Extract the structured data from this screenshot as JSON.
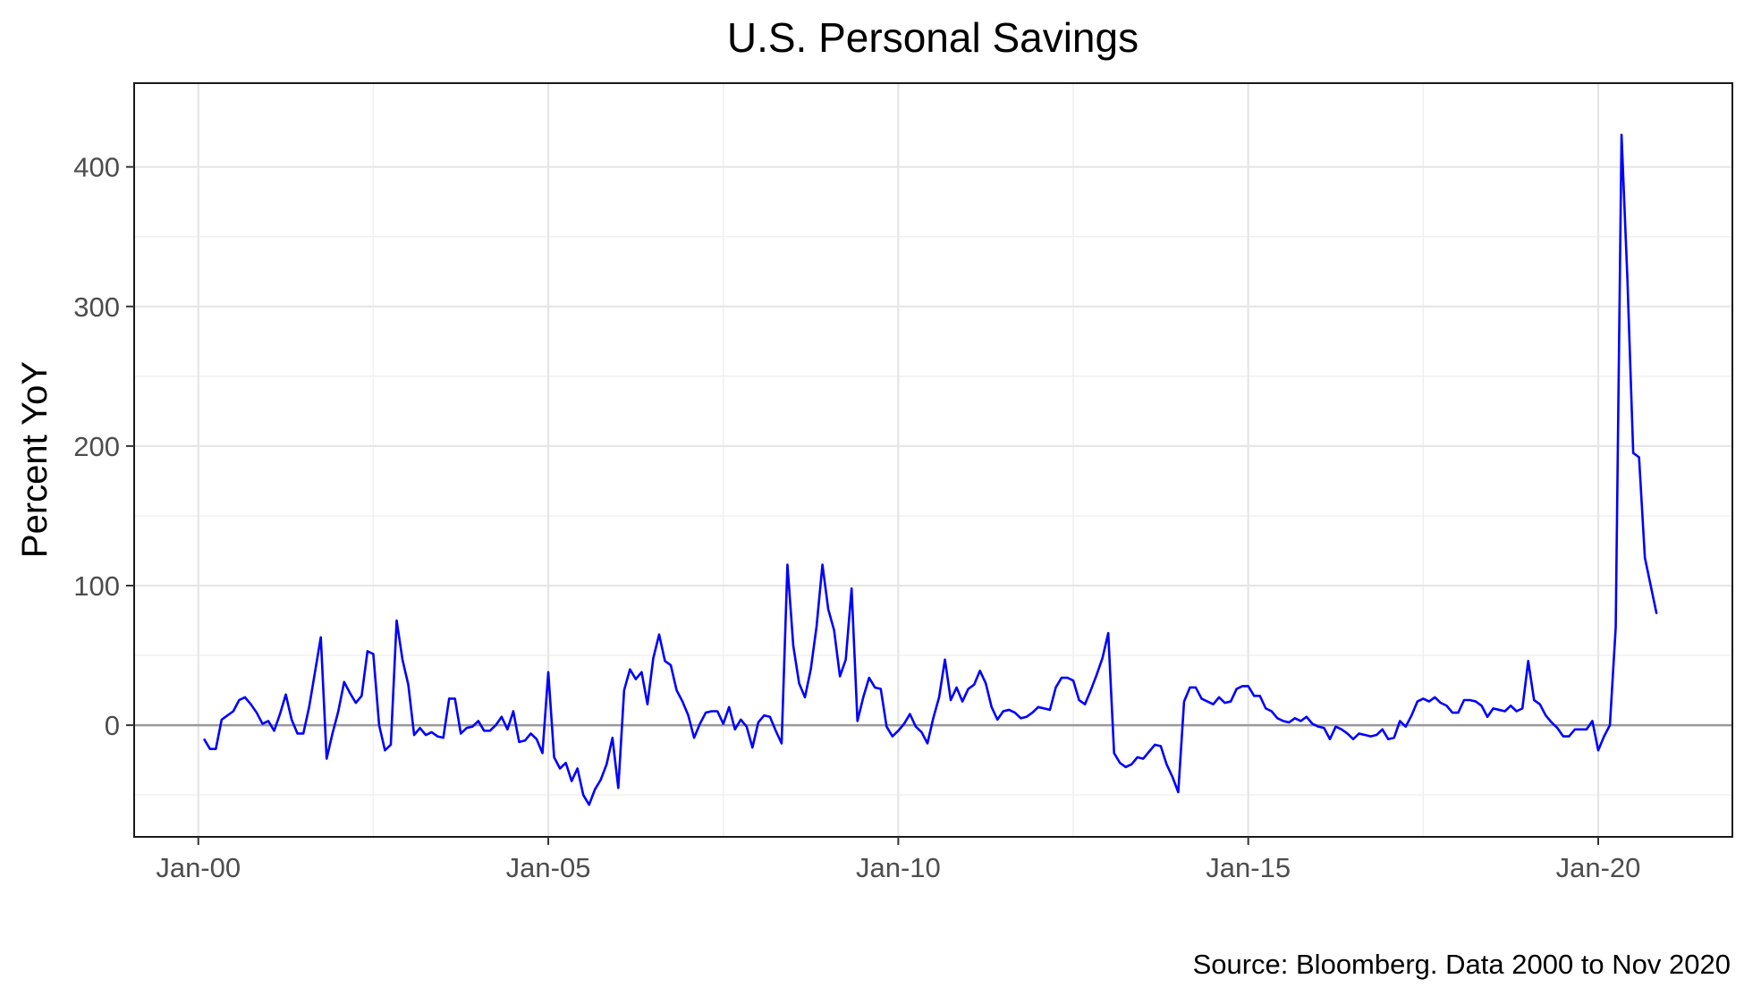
{
  "chart_data": {
    "type": "line",
    "title": "U.S. Personal Savings",
    "ylabel": "Percent YoY",
    "xlabel": "",
    "caption": "Source: Bloomberg. Data 2000 to Nov 2020",
    "x_ticks": [
      "Jan-00",
      "Jan-05",
      "Jan-10",
      "Jan-15",
      "Jan-20"
    ],
    "x_tick_dates": [
      "2000-01",
      "2005-01",
      "2010-01",
      "2015-01",
      "2020-01"
    ],
    "y_ticks": [
      0,
      100,
      200,
      300,
      400
    ],
    "xlim": [
      "1999-02",
      "2021-12"
    ],
    "ylim": [
      -80,
      460
    ],
    "grid": true,
    "reference_line_y": 0,
    "series": [
      {
        "color": "#0000ff",
        "points": [
          [
            "2000-02",
            -10
          ],
          [
            "2000-03",
            -17
          ],
          [
            "2000-04",
            -17
          ],
          [
            "2000-05",
            4
          ],
          [
            "2000-06",
            7
          ],
          [
            "2000-07",
            10
          ],
          [
            "2000-08",
            18
          ],
          [
            "2000-09",
            20
          ],
          [
            "2000-10",
            15
          ],
          [
            "2000-11",
            9
          ],
          [
            "2000-12",
            1
          ],
          [
            "2001-01",
            3
          ],
          [
            "2001-02",
            -4
          ],
          [
            "2001-03",
            8
          ],
          [
            "2001-04",
            22
          ],
          [
            "2001-05",
            4
          ],
          [
            "2001-06",
            -6
          ],
          [
            "2001-07",
            -6
          ],
          [
            "2001-08",
            13
          ],
          [
            "2001-09",
            38
          ],
          [
            "2001-10",
            63
          ],
          [
            "2001-11",
            -24
          ],
          [
            "2001-12",
            -6
          ],
          [
            "2002-01",
            10
          ],
          [
            "2002-02",
            31
          ],
          [
            "2002-03",
            23
          ],
          [
            "2002-04",
            16
          ],
          [
            "2002-05",
            21
          ],
          [
            "2002-06",
            53
          ],
          [
            "2002-07",
            51
          ],
          [
            "2002-08",
            0
          ],
          [
            "2002-09",
            -18
          ],
          [
            "2002-10",
            -14
          ],
          [
            "2002-11",
            75
          ],
          [
            "2002-12",
            47
          ],
          [
            "2003-01",
            29
          ],
          [
            "2003-02",
            -7
          ],
          [
            "2003-03",
            -2
          ],
          [
            "2003-04",
            -7
          ],
          [
            "2003-05",
            -5
          ],
          [
            "2003-06",
            -8
          ],
          [
            "2003-07",
            -9
          ],
          [
            "2003-08",
            19
          ],
          [
            "2003-09",
            19
          ],
          [
            "2003-10",
            -6
          ],
          [
            "2003-11",
            -2
          ],
          [
            "2003-12",
            -1
          ],
          [
            "2004-01",
            3
          ],
          [
            "2004-02",
            -4
          ],
          [
            "2004-03",
            -4
          ],
          [
            "2004-04",
            0
          ],
          [
            "2004-05",
            6
          ],
          [
            "2004-06",
            -3
          ],
          [
            "2004-07",
            10
          ],
          [
            "2004-08",
            -12
          ],
          [
            "2004-09",
            -11
          ],
          [
            "2004-10",
            -6
          ],
          [
            "2004-11",
            -10
          ],
          [
            "2004-12",
            -20
          ],
          [
            "2005-01",
            38
          ],
          [
            "2005-02",
            -23
          ],
          [
            "2005-03",
            -31
          ],
          [
            "2005-04",
            -27
          ],
          [
            "2005-05",
            -40
          ],
          [
            "2005-06",
            -31
          ],
          [
            "2005-07",
            -50
          ],
          [
            "2005-08",
            -57
          ],
          [
            "2005-09",
            -46
          ],
          [
            "2005-10",
            -39
          ],
          [
            "2005-11",
            -28
          ],
          [
            "2005-12",
            -9
          ],
          [
            "2006-01",
            -45
          ],
          [
            "2006-02",
            25
          ],
          [
            "2006-03",
            40
          ],
          [
            "2006-04",
            33
          ],
          [
            "2006-05",
            38
          ],
          [
            "2006-06",
            15
          ],
          [
            "2006-07",
            48
          ],
          [
            "2006-08",
            65
          ],
          [
            "2006-09",
            46
          ],
          [
            "2006-10",
            43
          ],
          [
            "2006-11",
            25
          ],
          [
            "2006-12",
            17
          ],
          [
            "2007-01",
            7
          ],
          [
            "2007-02",
            -9
          ],
          [
            "2007-03",
            1
          ],
          [
            "2007-04",
            9
          ],
          [
            "2007-05",
            10
          ],
          [
            "2007-06",
            10
          ],
          [
            "2007-07",
            1
          ],
          [
            "2007-08",
            13
          ],
          [
            "2007-09",
            -3
          ],
          [
            "2007-10",
            4
          ],
          [
            "2007-11",
            -1
          ],
          [
            "2007-12",
            -16
          ],
          [
            "2008-01",
            2
          ],
          [
            "2008-02",
            7
          ],
          [
            "2008-03",
            6
          ],
          [
            "2008-04",
            -4
          ],
          [
            "2008-05",
            -13
          ],
          [
            "2008-06",
            115
          ],
          [
            "2008-07",
            57
          ],
          [
            "2008-08",
            30
          ],
          [
            "2008-09",
            20
          ],
          [
            "2008-10",
            40
          ],
          [
            "2008-11",
            71
          ],
          [
            "2008-12",
            115
          ],
          [
            "2009-01",
            83
          ],
          [
            "2009-02",
            68
          ],
          [
            "2009-03",
            35
          ],
          [
            "2009-04",
            47
          ],
          [
            "2009-05",
            98
          ],
          [
            "2009-06",
            3
          ],
          [
            "2009-07",
            20
          ],
          [
            "2009-08",
            34
          ],
          [
            "2009-09",
            27
          ],
          [
            "2009-10",
            26
          ],
          [
            "2009-11",
            -1
          ],
          [
            "2009-12",
            -8
          ],
          [
            "2010-01",
            -4
          ],
          [
            "2010-02",
            1
          ],
          [
            "2010-03",
            8
          ],
          [
            "2010-04",
            -1
          ],
          [
            "2010-05",
            -5
          ],
          [
            "2010-06",
            -13
          ],
          [
            "2010-07",
            5
          ],
          [
            "2010-08",
            20
          ],
          [
            "2010-09",
            47
          ],
          [
            "2010-10",
            18
          ],
          [
            "2010-11",
            27
          ],
          [
            "2010-12",
            17
          ],
          [
            "2011-01",
            26
          ],
          [
            "2011-02",
            29
          ],
          [
            "2011-03",
            39
          ],
          [
            "2011-04",
            30
          ],
          [
            "2011-05",
            13
          ],
          [
            "2011-06",
            4
          ],
          [
            "2011-07",
            10
          ],
          [
            "2011-08",
            11
          ],
          [
            "2011-09",
            9
          ],
          [
            "2011-10",
            5
          ],
          [
            "2011-11",
            6
          ],
          [
            "2011-12",
            9
          ],
          [
            "2012-01",
            13
          ],
          [
            "2012-02",
            12
          ],
          [
            "2012-03",
            11
          ],
          [
            "2012-04",
            27
          ],
          [
            "2012-05",
            34
          ],
          [
            "2012-06",
            34
          ],
          [
            "2012-07",
            32
          ],
          [
            "2012-08",
            18
          ],
          [
            "2012-09",
            15
          ],
          [
            "2012-10",
            25
          ],
          [
            "2012-11",
            36
          ],
          [
            "2012-12",
            48
          ],
          [
            "2013-01",
            66
          ],
          [
            "2013-02",
            -20
          ],
          [
            "2013-03",
            -27
          ],
          [
            "2013-04",
            -30
          ],
          [
            "2013-05",
            -28
          ],
          [
            "2013-06",
            -23
          ],
          [
            "2013-07",
            -24
          ],
          [
            "2013-08",
            -19
          ],
          [
            "2013-09",
            -14
          ],
          [
            "2013-10",
            -15
          ],
          [
            "2013-11",
            -28
          ],
          [
            "2013-12",
            -37
          ],
          [
            "2014-01",
            -48
          ],
          [
            "2014-02",
            17
          ],
          [
            "2014-03",
            27
          ],
          [
            "2014-04",
            27
          ],
          [
            "2014-05",
            19
          ],
          [
            "2014-06",
            17
          ],
          [
            "2014-07",
            15
          ],
          [
            "2014-08",
            20
          ],
          [
            "2014-09",
            16
          ],
          [
            "2014-10",
            17
          ],
          [
            "2014-11",
            26
          ],
          [
            "2014-12",
            28
          ],
          [
            "2015-01",
            28
          ],
          [
            "2015-02",
            21
          ],
          [
            "2015-03",
            21
          ],
          [
            "2015-04",
            12
          ],
          [
            "2015-05",
            10
          ],
          [
            "2015-06",
            5
          ],
          [
            "2015-07",
            3
          ],
          [
            "2015-08",
            2
          ],
          [
            "2015-09",
            5
          ],
          [
            "2015-10",
            3
          ],
          [
            "2015-11",
            6
          ],
          [
            "2015-12",
            1
          ],
          [
            "2016-01",
            -1
          ],
          [
            "2016-02",
            -2
          ],
          [
            "2016-03",
            -10
          ],
          [
            "2016-04",
            -1
          ],
          [
            "2016-05",
            -3
          ],
          [
            "2016-06",
            -6
          ],
          [
            "2016-07",
            -10
          ],
          [
            "2016-08",
            -6
          ],
          [
            "2016-09",
            -7
          ],
          [
            "2016-10",
            -8
          ],
          [
            "2016-11",
            -7
          ],
          [
            "2016-12",
            -3
          ],
          [
            "2017-01",
            -10
          ],
          [
            "2017-02",
            -9
          ],
          [
            "2017-03",
            3
          ],
          [
            "2017-04",
            -1
          ],
          [
            "2017-05",
            7
          ],
          [
            "2017-06",
            17
          ],
          [
            "2017-07",
            19
          ],
          [
            "2017-08",
            17
          ],
          [
            "2017-09",
            20
          ],
          [
            "2017-10",
            16
          ],
          [
            "2017-11",
            14
          ],
          [
            "2017-12",
            9
          ],
          [
            "2018-01",
            9
          ],
          [
            "2018-02",
            18
          ],
          [
            "2018-03",
            18
          ],
          [
            "2018-04",
            17
          ],
          [
            "2018-05",
            14
          ],
          [
            "2018-06",
            6
          ],
          [
            "2018-07",
            12
          ],
          [
            "2018-08",
            11
          ],
          [
            "2018-09",
            10
          ],
          [
            "2018-10",
            14
          ],
          [
            "2018-11",
            10
          ],
          [
            "2018-12",
            12
          ],
          [
            "2019-01",
            46
          ],
          [
            "2019-02",
            18
          ],
          [
            "2019-03",
            15
          ],
          [
            "2019-04",
            7
          ],
          [
            "2019-05",
            2
          ],
          [
            "2019-06",
            -2
          ],
          [
            "2019-07",
            -8
          ],
          [
            "2019-08",
            -8
          ],
          [
            "2019-09",
            -3
          ],
          [
            "2019-10",
            -3
          ],
          [
            "2019-11",
            -3
          ],
          [
            "2019-12",
            3
          ],
          [
            "2020-01",
            -18
          ],
          [
            "2020-02",
            -8
          ],
          [
            "2020-03",
            0
          ],
          [
            "2020-04",
            70
          ],
          [
            "2020-05",
            423
          ],
          [
            "2020-06",
            320
          ],
          [
            "2020-07",
            195
          ],
          [
            "2020-08",
            192
          ],
          [
            "2020-09",
            120
          ],
          [
            "2020-10",
            100
          ],
          [
            "2020-11",
            80
          ]
        ]
      }
    ]
  }
}
